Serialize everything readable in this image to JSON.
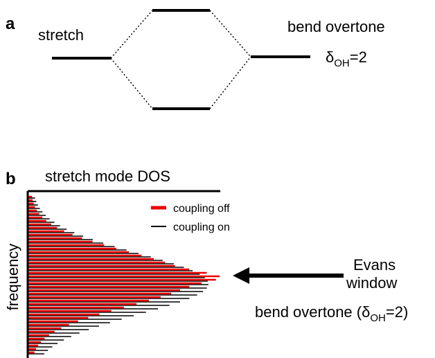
{
  "panel_a": {
    "label": "a",
    "left_level": "stretch",
    "right_level": "bend overtone",
    "right_sub": {
      "symbol": "δ",
      "subscript": "OH",
      "rest": "=2"
    }
  },
  "panel_b": {
    "label": "b",
    "title": "stretch mode DOS",
    "y_axis_label": "frequency",
    "legend": [
      "coupling off",
      "coupling on"
    ],
    "arrow_label": [
      "Evans",
      "window"
    ],
    "bottom_label": {
      "prefix": "bend overtone (",
      "symbol": "δ",
      "subscript": "OH",
      "rest": "=2)"
    }
  }
}
